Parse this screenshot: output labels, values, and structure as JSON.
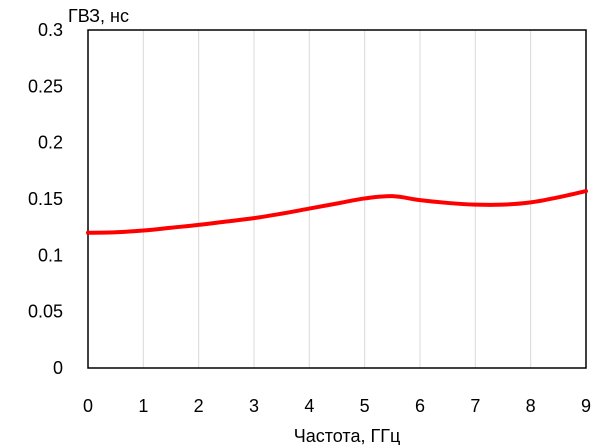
{
  "chart_data": {
    "type": "line",
    "xlabel": "Частота, ГГц",
    "ylabel": "ГВЗ, нс",
    "xlim": [
      0,
      9
    ],
    "ylim": [
      0,
      0.3
    ],
    "x_ticks": [
      0,
      1,
      2,
      3,
      4,
      5,
      6,
      7,
      8,
      9
    ],
    "y_ticks": [
      0,
      0.05,
      0.1,
      0.15,
      0.2,
      0.25,
      0.3
    ],
    "x_tick_labels": [
      "0",
      "1",
      "2",
      "3",
      "4",
      "5",
      "6",
      "7",
      "8",
      "9"
    ],
    "y_tick_labels": [
      "0",
      "0.05",
      "0.1",
      "0.15",
      "0.2",
      "0.25",
      "0.3"
    ],
    "grid": "vertical",
    "legend": "none",
    "series": [
      {
        "color": "#ff0000",
        "x": [
          0,
          0.5,
          1,
          1.5,
          2,
          2.5,
          3,
          3.5,
          4,
          4.5,
          5,
          5.5,
          6,
          6.5,
          7,
          7.5,
          8,
          8.5,
          9
        ],
        "y": [
          0.12,
          0.1205,
          0.122,
          0.1245,
          0.127,
          0.13,
          0.133,
          0.137,
          0.1415,
          0.146,
          0.1505,
          0.1525,
          0.149,
          0.1465,
          0.145,
          0.145,
          0.147,
          0.1515,
          0.157
        ]
      }
    ]
  }
}
